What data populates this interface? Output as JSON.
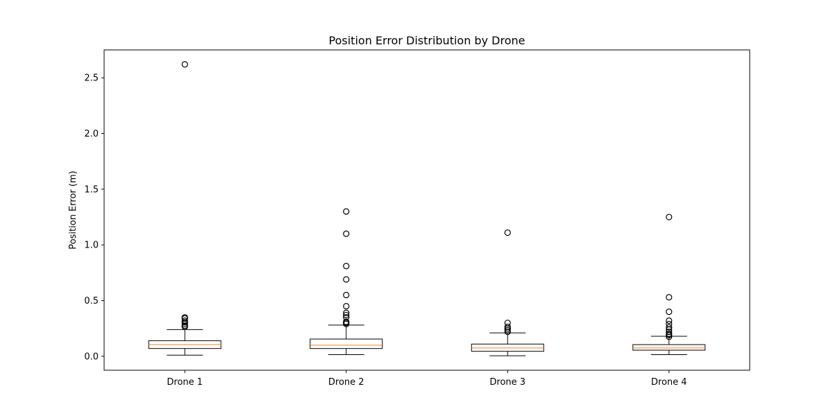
{
  "chart_data": {
    "type": "box",
    "title": "Position Error Distribution by Drone",
    "xlabel": "",
    "ylabel": "Position Error (m)",
    "ylim": [
      -0.125,
      2.75
    ],
    "yticks": [
      0.0,
      0.5,
      1.0,
      1.5,
      2.0,
      2.5
    ],
    "ytick_labels": [
      "0.0",
      "0.5",
      "1.0",
      "1.5",
      "2.0",
      "2.5"
    ],
    "grid": false,
    "categories": [
      "Drone 1",
      "Drone 2",
      "Drone 3",
      "Drone 4"
    ],
    "boxes": [
      {
        "name": "Drone 1",
        "whisker_low": 0.01,
        "q1": 0.07,
        "median": 0.105,
        "q3": 0.14,
        "whisker_high": 0.24,
        "outliers": [
          0.265,
          0.275,
          0.29,
          0.305,
          0.32,
          0.34,
          0.35,
          2.62
        ]
      },
      {
        "name": "Drone 2",
        "whisker_low": 0.015,
        "q1": 0.07,
        "median": 0.1,
        "q3": 0.155,
        "whisker_high": 0.28,
        "outliers": [
          0.29,
          0.3,
          0.31,
          0.35,
          0.37,
          0.39,
          0.45,
          0.55,
          0.69,
          0.81,
          1.1,
          1.3
        ]
      },
      {
        "name": "Drone 3",
        "whisker_low": 0.005,
        "q1": 0.045,
        "median": 0.075,
        "q3": 0.11,
        "whisker_high": 0.21,
        "outliers": [
          0.22,
          0.235,
          0.25,
          0.265,
          0.3,
          1.11
        ]
      },
      {
        "name": "Drone 4",
        "whisker_low": 0.015,
        "q1": 0.055,
        "median": 0.075,
        "q3": 0.105,
        "whisker_high": 0.18,
        "outliers": [
          0.175,
          0.19,
          0.2,
          0.22,
          0.24,
          0.26,
          0.29,
          0.32,
          0.4,
          0.53,
          1.25
        ]
      }
    ],
    "colors": {
      "box": "#000000",
      "median": "#ff7f0e",
      "outlier": "#000000"
    }
  }
}
